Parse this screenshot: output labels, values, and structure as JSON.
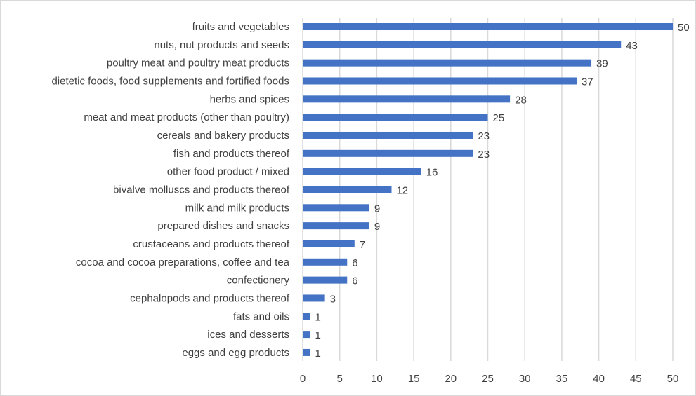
{
  "chart_data": {
    "type": "bar",
    "orientation": "horizontal",
    "categories": [
      "fruits and vegetables",
      "nuts, nut products and seeds",
      "poultry meat and poultry meat products",
      "dietetic foods, food supplements and fortified foods",
      "herbs and spices",
      "meat and meat products (other than poultry)",
      "cereals and bakery products",
      "fish and products thereof",
      "other food product / mixed",
      "bivalve molluscs and products thereof",
      "milk and milk products",
      "prepared dishes and snacks",
      "crustaceans and products thereof",
      "cocoa and cocoa preparations, coffee and tea",
      "confectionery",
      "cephalopods and products thereof",
      "fats and oils",
      "ices and desserts",
      "eggs and egg products"
    ],
    "values": [
      50,
      43,
      39,
      37,
      28,
      25,
      23,
      23,
      16,
      12,
      9,
      9,
      7,
      6,
      6,
      3,
      1,
      1,
      1
    ],
    "xlim": [
      0,
      50
    ],
    "xticks": [
      0,
      5,
      10,
      15,
      20,
      25,
      30,
      35,
      40,
      45,
      50
    ],
    "grid": "vertical",
    "data_labels": true,
    "bar_color": "#4472C4",
    "grid_color": "#d9d9d9"
  }
}
